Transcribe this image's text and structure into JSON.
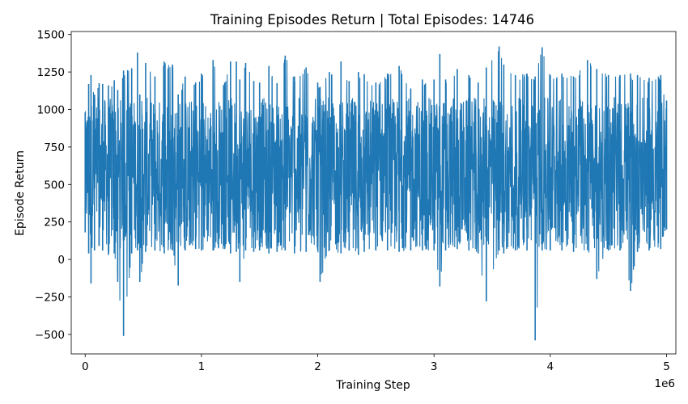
{
  "chart_data": {
    "type": "line",
    "title": "Training Episodes Return | Total Episodes: 14746",
    "xlabel": "Training Step",
    "ylabel": "Episode Return",
    "x_offset_text": "1e6",
    "xlim": [
      -0.12,
      5.08
    ],
    "ylim": [
      -630,
      1520
    ],
    "x_ticks": [
      {
        "value": 0,
        "label": "0"
      },
      {
        "value": 1,
        "label": "1"
      },
      {
        "value": 2,
        "label": "2"
      },
      {
        "value": 3,
        "label": "3"
      },
      {
        "value": 4,
        "label": "4"
      },
      {
        "value": 5,
        "label": "5"
      }
    ],
    "y_ticks": [
      {
        "value": -500,
        "label": "−500"
      },
      {
        "value": -250,
        "label": "−250"
      },
      {
        "value": 0,
        "label": "0"
      },
      {
        "value": 250,
        "label": "250"
      },
      {
        "value": 500,
        "label": "500"
      },
      {
        "value": 750,
        "label": "750"
      },
      {
        "value": 1000,
        "label": "1000"
      },
      {
        "value": 1250,
        "label": "1250"
      },
      {
        "value": 1500,
        "label": "1500"
      }
    ],
    "grid": false,
    "legend": "none",
    "series": [
      {
        "color": "#1f77b4",
        "x": [
          0,
          0.03,
          0.05,
          0.08,
          0.12,
          0.15,
          0.2,
          0.25,
          0.28,
          0.33,
          0.4,
          0.45,
          0.47,
          0.52,
          0.6,
          0.68,
          0.75,
          0.8,
          0.86,
          0.95,
          1.0,
          1.1,
          1.2,
          1.25,
          1.3,
          1.33,
          1.38,
          1.45,
          1.5,
          1.58,
          1.65,
          1.72,
          1.8,
          1.9,
          2.0,
          2.02,
          2.1,
          2.2,
          2.27,
          2.35,
          2.4,
          2.5,
          2.6,
          2.7,
          2.8,
          2.9,
          3.0,
          3.05,
          3.1,
          3.2,
          3.3,
          3.38,
          3.45,
          3.56,
          3.6,
          3.7,
          3.8,
          3.87,
          3.93,
          4.0,
          4.1,
          4.2,
          4.32,
          4.4,
          4.5,
          4.6,
          4.69,
          4.75,
          4.85,
          4.95,
          5.0
        ],
        "low": [
          180,
          40,
          -160,
          60,
          90,
          60,
          30,
          40,
          -150,
          -510,
          40,
          60,
          -150,
          50,
          60,
          40,
          60,
          -175,
          60,
          70,
          60,
          60,
          70,
          40,
          50,
          -150,
          60,
          50,
          60,
          40,
          50,
          60,
          40,
          50,
          60,
          -150,
          60,
          40,
          60,
          30,
          50,
          60,
          60,
          50,
          60,
          60,
          60,
          -180,
          60,
          70,
          60,
          40,
          -280,
          60,
          40,
          60,
          60,
          -540,
          60,
          60,
          60,
          50,
          60,
          -130,
          60,
          60,
          -210,
          50,
          60,
          70,
          200
        ],
        "high": [
          980,
          1170,
          1230,
          1100,
          1175,
          1170,
          1160,
          1195,
          1130,
          1260,
          1275,
          1380,
          1100,
          1310,
          1220,
          1320,
          1300,
          1100,
          1220,
          1180,
          1240,
          1330,
          1180,
          1320,
          1320,
          1200,
          1310,
          1190,
          1180,
          1290,
          1175,
          1360,
          1220,
          1280,
          1180,
          1150,
          1250,
          1320,
          1190,
          1250,
          1235,
          1180,
          1240,
          1290,
          1140,
          1200,
          1200,
          1370,
          1200,
          1270,
          1230,
          1180,
          1280,
          1420,
          1300,
          1230,
          1240,
          1220,
          1415,
          1230,
          1240,
          1220,
          1330,
          1270,
          1230,
          1230,
          1240,
          1230,
          1210,
          1230,
          1060
        ]
      }
    ]
  }
}
